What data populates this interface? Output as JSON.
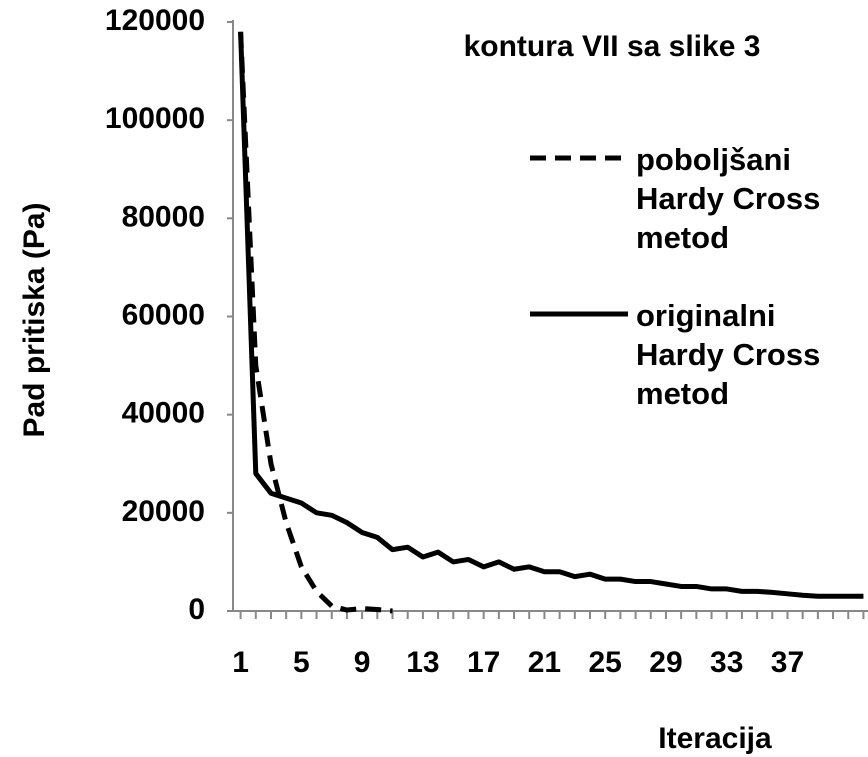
{
  "chart_data": {
    "type": "line",
    "title": "kontura VII sa slike 3",
    "xlabel": "Iteracija",
    "ylabel": "Pad pritiska (Pa)",
    "x": [
      1,
      2,
      3,
      4,
      5,
      6,
      7,
      8,
      9,
      10,
      11,
      12,
      13,
      14,
      15,
      16,
      17,
      18,
      19,
      20,
      21,
      22,
      23,
      24,
      25,
      26,
      27,
      28,
      29,
      30,
      31,
      32,
      33,
      34,
      35,
      36,
      37,
      38,
      39,
      40,
      41,
      42
    ],
    "series": [
      {
        "name": "poboljšani Hardy Cross metod",
        "color": "#000000",
        "dash": true,
        "values": [
          118000,
          50000,
          30000,
          18000,
          9000,
          4000,
          1000,
          200,
          500,
          300,
          0,
          null,
          null,
          null,
          null,
          null,
          null,
          null,
          null,
          null,
          null,
          null,
          null,
          null,
          null,
          null,
          null,
          null,
          null,
          null,
          null,
          null,
          null,
          null,
          null,
          null,
          null,
          null,
          null,
          null,
          null,
          null
        ]
      },
      {
        "name": "originalni Hardy Cross metod",
        "color": "#000000",
        "dash": false,
        "values": [
          118000,
          28000,
          24000,
          23000,
          22000,
          20000,
          19500,
          18000,
          16000,
          15000,
          12500,
          13000,
          11000,
          12000,
          10000,
          10500,
          9000,
          10000,
          8500,
          9000,
          8000,
          8000,
          7000,
          7500,
          6500,
          6500,
          6000,
          6000,
          5500,
          5000,
          5000,
          4500,
          4500,
          4000,
          4000,
          3800,
          3500,
          3200,
          3000,
          3000,
          3000,
          3000
        ]
      }
    ],
    "xlim": [
      0.5,
      42.3
    ],
    "xticks": [
      1,
      5,
      9,
      13,
      17,
      21,
      25,
      29,
      33,
      37
    ],
    "ylim": [
      0,
      120000
    ],
    "yticks": [
      0,
      20000,
      40000,
      60000,
      80000,
      100000,
      120000
    ],
    "grid": false
  }
}
